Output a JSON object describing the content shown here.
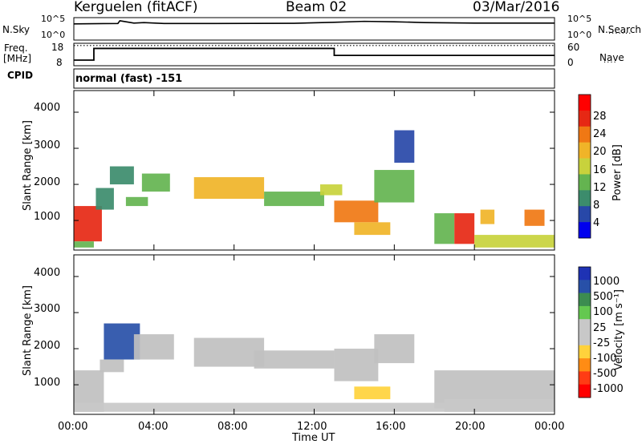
{
  "header": {
    "station": "Kerguelen (fitACF)",
    "beam": "Beam 02",
    "date": "03/Mar/2016"
  },
  "aux_panels": {
    "nsky": {
      "label": "N.Sky",
      "tick_top": "10^5",
      "tick_bottom": "10^0"
    },
    "nsearch": {
      "label": "N.Search",
      "tick_top": "10^5",
      "tick_bottom": "10^0"
    },
    "freq": {
      "label_line1": "Freq.",
      "label_line2": "[MHz]",
      "tick_top": "18",
      "tick_bottom": "8"
    },
    "nave": {
      "label": "Nave",
      "tick_top": "60",
      "tick_bottom": "0"
    },
    "cpid": {
      "label": "CPID",
      "value": "normal (fast) -151"
    }
  },
  "x_axis": {
    "label": "Time UT",
    "tick_labels": [
      "00:00",
      "04:00",
      "08:00",
      "12:00",
      "16:00",
      "20:00",
      "00:00"
    ]
  },
  "y_axis": {
    "label": "Slant Range [km]",
    "tick_labels": [
      "1000",
      "2000",
      "3000",
      "4000"
    ]
  },
  "colorbars": {
    "power": {
      "label": "Power [dB]",
      "ticks": [
        "4",
        "8",
        "12",
        "16",
        "20",
        "24",
        "28"
      ]
    },
    "velocity": {
      "label": "Velocity [m s⁻¹]",
      "ticks": [
        "1000",
        "500",
        "100",
        "25",
        "-25",
        "-100",
        "-500",
        "-1000"
      ]
    }
  },
  "colors": {
    "power_scale": [
      "#0000ee",
      "#2848a8",
      "#3c8c6c",
      "#64b450",
      "#c8d23c",
      "#f0b428",
      "#f07814",
      "#e62814",
      "#ff0000"
    ],
    "velocity_scale": [
      "#1e32b4",
      "#2850a8",
      "#3c8c50",
      "#64c850",
      "#c8c8c8",
      "#c8c8c8",
      "#ffd23c",
      "#ff8c14",
      "#ff3c14",
      "#ff0000"
    ],
    "ground_scatter": "#c0c0c0"
  },
  "chart_data": [
    {
      "type": "line",
      "title": "N.Sky / N.Search",
      "x_units": "hours UT",
      "y_scale": "log",
      "ylim": [
        1,
        100000
      ],
      "x": [
        0,
        2.2,
        2.3,
        3.0,
        3.5,
        4.5,
        7,
        11,
        13,
        14.5,
        16,
        17.5,
        20,
        24
      ],
      "series": [
        {
          "values": [
            4000,
            5000,
            20000,
            6000,
            8000,
            5000,
            5000,
            5500,
            9000,
            15000,
            12000,
            8000,
            6000,
            6000
          ]
        }
      ]
    },
    {
      "type": "line",
      "title": "Freq. / Nave",
      "x_units": "hours UT",
      "ylim": [
        8,
        18
      ],
      "x": [
        0,
        1.0,
        1.0,
        13.0,
        13.0,
        24
      ],
      "series": [
        {
          "values": [
            10.5,
            10.5,
            15.7,
            15.7,
            12.6,
            12.6
          ]
        },
        {
          "values": [
            17,
            17,
            17,
            17,
            17,
            17
          ]
        }
      ]
    },
    {
      "type": "heatmap",
      "title": "Power [dB]",
      "x_units": "hours UT",
      "y_units": "km",
      "xlim": [
        0,
        24
      ],
      "ylim": [
        180,
        4600
      ],
      "clim": [
        0,
        32
      ],
      "regions": [
        {
          "t0": 0.0,
          "t1": 1.4,
          "r0": 420,
          "r1": 1400,
          "value": 27
        },
        {
          "t0": 0.0,
          "t1": 1.0,
          "r0": 250,
          "r1": 420,
          "value": 14
        },
        {
          "t0": 1.1,
          "t1": 2.0,
          "r0": 1300,
          "r1": 1900,
          "value": 9
        },
        {
          "t0": 1.8,
          "t1": 3.0,
          "r0": 2000,
          "r1": 2500,
          "value": 9
        },
        {
          "t0": 2.6,
          "t1": 3.7,
          "r0": 1400,
          "r1": 1650,
          "value": 14
        },
        {
          "t0": 3.4,
          "t1": 4.8,
          "r0": 1800,
          "r1": 2300,
          "value": 13
        },
        {
          "t0": 6.0,
          "t1": 9.5,
          "r0": 1600,
          "r1": 2200,
          "value": 18
        },
        {
          "t0": 9.5,
          "t1": 12.5,
          "r0": 1400,
          "r1": 1800,
          "value": 14
        },
        {
          "t0": 12.3,
          "t1": 13.4,
          "r0": 1700,
          "r1": 2000,
          "value": 15
        },
        {
          "t0": 13.0,
          "t1": 15.2,
          "r0": 950,
          "r1": 1550,
          "value": 24
        },
        {
          "t0": 14.0,
          "t1": 15.8,
          "r0": 600,
          "r1": 950,
          "value": 20
        },
        {
          "t0": 15.0,
          "t1": 17.0,
          "r0": 1500,
          "r1": 2400,
          "value": 14
        },
        {
          "t0": 16.0,
          "t1": 17.0,
          "r0": 2600,
          "r1": 3500,
          "value": 6
        },
        {
          "t0": 18.0,
          "t1": 19.0,
          "r0": 350,
          "r1": 1200,
          "value": 13
        },
        {
          "t0": 19.0,
          "t1": 20.0,
          "r0": 350,
          "r1": 1200,
          "value": 27
        },
        {
          "t0": 20.3,
          "t1": 21.0,
          "r0": 900,
          "r1": 1300,
          "value": 20
        },
        {
          "t0": 20.0,
          "t1": 24.0,
          "r0": 250,
          "r1": 600,
          "value": 15
        },
        {
          "t0": 22.5,
          "t1": 23.5,
          "r0": 850,
          "r1": 1300,
          "value": 22
        }
      ]
    },
    {
      "type": "heatmap",
      "title": "Velocity [m s⁻¹]",
      "x_units": "hours UT",
      "y_units": "km",
      "xlim": [
        0,
        24
      ],
      "ylim": [
        180,
        4600
      ],
      "clim": [
        -1200,
        1200
      ],
      "regions": [
        {
          "t0": 0.0,
          "t1": 1.5,
          "r0": 250,
          "r1": 1400,
          "value": 0,
          "ground_scatter": true
        },
        {
          "t0": 1.5,
          "t1": 3.3,
          "r0": 1700,
          "r1": 2700,
          "value": 900
        },
        {
          "t0": 1.3,
          "t1": 2.5,
          "r0": 1350,
          "r1": 1700,
          "value": 0,
          "ground_scatter": true
        },
        {
          "t0": 3.0,
          "t1": 5.0,
          "r0": 1700,
          "r1": 2400,
          "value": 0,
          "ground_scatter": true
        },
        {
          "t0": 6.0,
          "t1": 9.5,
          "r0": 1500,
          "r1": 2300,
          "value": 0,
          "ground_scatter": true
        },
        {
          "t0": 9.0,
          "t1": 13.0,
          "r0": 1450,
          "r1": 1950,
          "value": 0,
          "ground_scatter": true
        },
        {
          "t0": 13.0,
          "t1": 15.2,
          "r0": 1100,
          "r1": 2000,
          "value": 0,
          "ground_scatter": true
        },
        {
          "t0": 14.0,
          "t1": 15.8,
          "r0": 600,
          "r1": 950,
          "value": -250
        },
        {
          "t0": 15.0,
          "t1": 17.0,
          "r0": 1600,
          "r1": 2400,
          "value": 0,
          "ground_scatter": true
        },
        {
          "t0": 18.0,
          "t1": 24.0,
          "r0": 350,
          "r1": 1400,
          "value": 0,
          "ground_scatter": true
        },
        {
          "t0": 18.5,
          "t1": 24.0,
          "r0": 250,
          "r1": 600,
          "value": -80
        },
        {
          "t0": 0.0,
          "t1": 24.0,
          "r0": 250,
          "r1": 500,
          "value": 40
        }
      ]
    }
  ]
}
